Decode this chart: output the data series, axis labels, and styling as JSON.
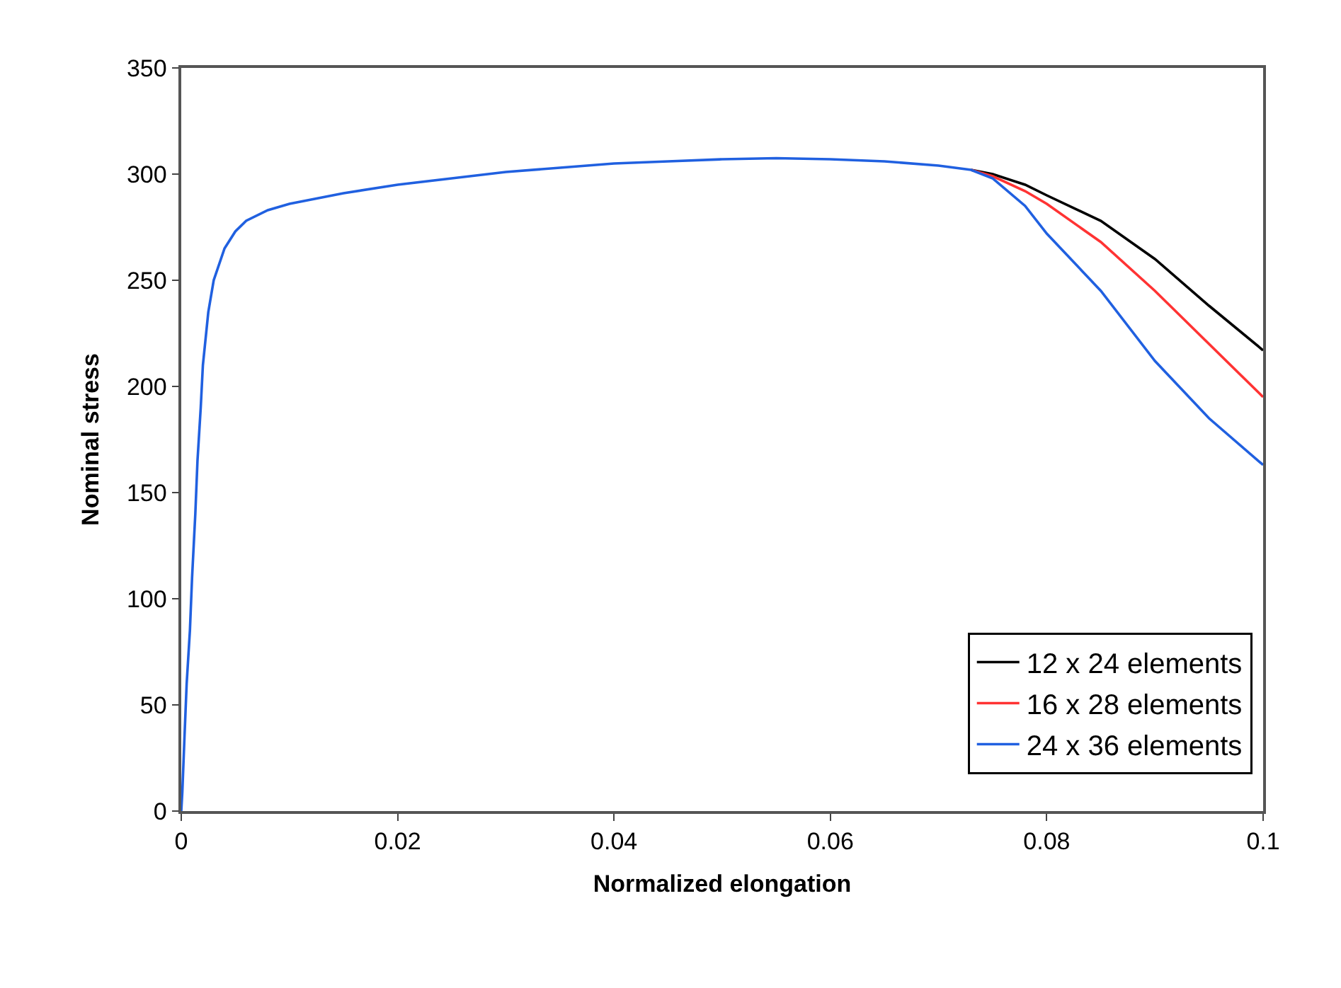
{
  "chart_data": {
    "type": "line",
    "xlabel": "Normalized elongation",
    "ylabel": "Nominal stress",
    "xlim": [
      0,
      0.1
    ],
    "xticks": [
      0,
      0.02,
      0.04,
      0.06,
      0.08,
      0.1
    ],
    "ylim": [
      0,
      350
    ],
    "yticks": [
      0,
      50,
      100,
      150,
      200,
      250,
      300,
      350
    ],
    "legend": "bottom right",
    "marker": "none",
    "line_style": "solid",
    "x": [
      0,
      0.0001,
      0.0003,
      0.0005,
      0.0008,
      0.001,
      0.0013,
      0.0015,
      0.0018,
      0.002,
      0.0025,
      0.003,
      0.004,
      0.005,
      0.006,
      0.008,
      0.01,
      0.015,
      0.02,
      0.025,
      0.03,
      0.035,
      0.04,
      0.045,
      0.05,
      0.055,
      0.06,
      0.065,
      0.07,
      0.073,
      0.075,
      0.078,
      0.08,
      0.085,
      0.09,
      0.095,
      0.1
    ],
    "series": [
      {
        "name": "12 x 24 elements",
        "color": "#000000",
        "values": [
          null,
          null,
          null,
          null,
          null,
          null,
          null,
          null,
          null,
          null,
          null,
          null,
          null,
          null,
          null,
          null,
          null,
          null,
          null,
          null,
          null,
          null,
          null,
          null,
          null,
          null,
          null,
          null,
          null,
          302,
          300,
          295,
          290,
          278,
          260,
          238,
          217
        ]
      },
      {
        "name": "16 x 28 elements",
        "color": "#ff3333",
        "values": [
          null,
          null,
          null,
          null,
          null,
          null,
          null,
          null,
          null,
          null,
          null,
          null,
          null,
          null,
          null,
          null,
          null,
          null,
          null,
          null,
          null,
          null,
          null,
          null,
          null,
          null,
          null,
          null,
          null,
          302,
          299,
          292,
          286,
          268,
          245,
          220,
          195
        ]
      },
      {
        "name": "24 x 36 elements",
        "color": "#2060e0",
        "values": [
          0,
          9,
          35,
          60,
          85,
          110,
          140,
          165,
          190,
          210,
          235,
          250,
          265,
          273,
          278,
          283,
          286,
          291,
          295,
          298,
          301,
          303,
          305,
          306,
          307,
          307.5,
          307,
          306,
          304,
          302,
          298,
          285,
          272,
          245,
          212,
          185,
          163
        ]
      }
    ]
  }
}
